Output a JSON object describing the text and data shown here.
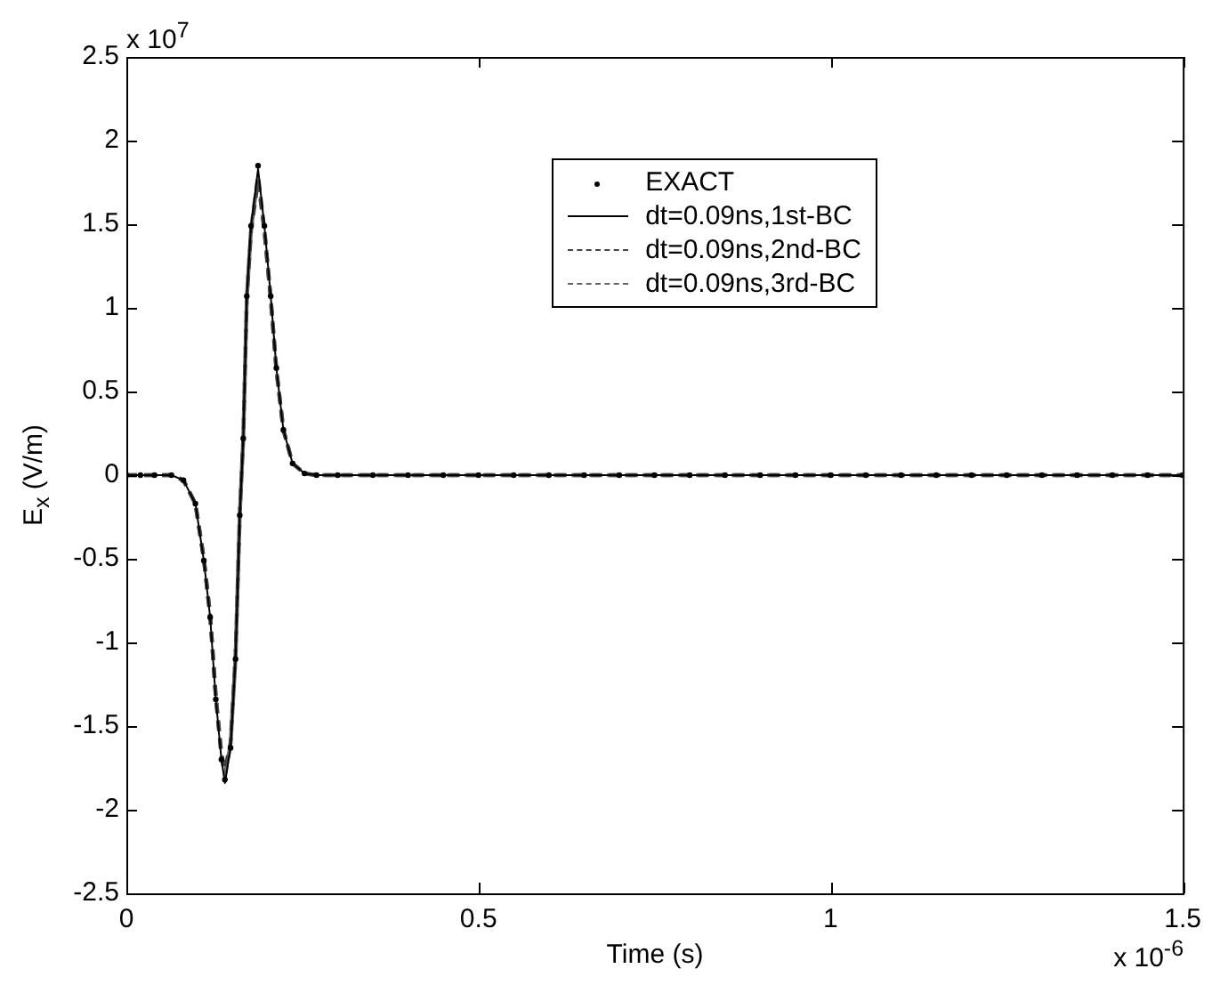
{
  "chart_data": {
    "type": "line",
    "xlabel": "Time (s)",
    "ylabel": "E$_{x}$ (V/m)",
    "annotations": [
      "x 10$^{7}$",
      "x 10$^{-6}$"
    ],
    "xlim": [
      0,
      1.5
    ],
    "xticks": [
      0,
      0.5,
      1,
      1.5
    ],
    "ylim": [
      -2.5,
      2.5
    ],
    "yticks": [
      -2.5,
      -2,
      -1.5,
      -1,
      -0.5,
      0,
      0.5,
      1,
      1.5,
      2,
      2.5
    ],
    "grid": false,
    "legend": "top",
    "marker": "none",
    "series": [
      {
        "name": "EXACT",
        "type": "scatter",
        "marker": "circle",
        "color": "#000000",
        "x": [
          0,
          0.02,
          0.04,
          0.064,
          0.081,
          0.098,
          0.11,
          0.119,
          0.127,
          0.135,
          0.14,
          0.148,
          0.155,
          0.161,
          0.166,
          0.171,
          0.177,
          0.187,
          0.196,
          0.205,
          0.213,
          0.223,
          0.236,
          0.253,
          0.27,
          0.3,
          0.35,
          0.4,
          0.45,
          0.5,
          0.55,
          0.6,
          0.65,
          0.7,
          0.75,
          0.8,
          0.85,
          0.9,
          0.95,
          1,
          1.05,
          1.1,
          1.15,
          1.2,
          1.25,
          1.3,
          1.35,
          1.4,
          1.45,
          1.5
        ],
        "values": [
          0,
          0,
          0,
          0,
          -0.03,
          -0.17,
          -0.51,
          -0.85,
          -1.34,
          -1.7,
          -1.82,
          -1.63,
          -1.1,
          -0.24,
          0.22,
          1.07,
          1.49,
          1.85,
          1.49,
          1.07,
          0.64,
          0.27,
          0.07,
          0.01,
          0,
          0,
          0,
          0,
          0,
          0,
          0,
          0,
          0,
          0,
          0,
          0,
          0,
          0,
          0,
          0,
          0,
          0,
          0,
          0,
          0,
          0,
          0,
          0,
          0,
          0
        ]
      },
      {
        "name": "dt=0.09ns,1st-BC",
        "color": "#000000",
        "line_style": "solid",
        "x": [
          0,
          0.064,
          0.081,
          0.098,
          0.11,
          0.119,
          0.127,
          0.135,
          0.14,
          0.148,
          0.155,
          0.161,
          0.166,
          0.171,
          0.177,
          0.187,
          0.196,
          0.205,
          0.213,
          0.223,
          0.236,
          0.253,
          0.27,
          1.5
        ],
        "values": [
          0,
          0,
          -0.03,
          -0.17,
          -0.51,
          -0.85,
          -1.34,
          -1.7,
          -1.84,
          -1.63,
          -1.1,
          -0.24,
          0.22,
          1.07,
          1.49,
          1.83,
          1.49,
          1.07,
          0.64,
          0.27,
          0.07,
          0.01,
          0,
          0
        ]
      },
      {
        "name": "dt=0.09ns,2nd-BC",
        "color": "#444444",
        "line_style": "dashed",
        "x": [
          0,
          0.064,
          0.081,
          0.098,
          0.11,
          0.119,
          0.127,
          0.135,
          0.14,
          0.148,
          0.155,
          0.161,
          0.166,
          0.171,
          0.177,
          0.187,
          0.196,
          0.205,
          0.213,
          0.223,
          0.236,
          0.253,
          0.27,
          1.5
        ],
        "values": [
          0,
          0,
          -0.03,
          -0.17,
          -0.5,
          -0.84,
          -1.32,
          -1.67,
          -1.76,
          -1.6,
          -1.08,
          -0.24,
          0.22,
          1.05,
          1.46,
          1.76,
          1.46,
          1.05,
          0.63,
          0.27,
          0.07,
          0.01,
          0,
          0
        ]
      },
      {
        "name": "dt=0.09ns,3rd-BC",
        "color": "#666666",
        "line_style": "dashed",
        "x": [
          0,
          0.064,
          0.081,
          0.098,
          0.11,
          0.119,
          0.127,
          0.135,
          0.14,
          0.148,
          0.155,
          0.161,
          0.166,
          0.171,
          0.177,
          0.187,
          0.196,
          0.205,
          0.213,
          0.223,
          0.236,
          0.253,
          0.27,
          1.5
        ],
        "values": [
          0,
          0,
          -0.03,
          -0.17,
          -0.5,
          -0.84,
          -1.33,
          -1.68,
          -1.79,
          -1.61,
          -1.09,
          -0.24,
          0.22,
          1.06,
          1.47,
          1.79,
          1.47,
          1.06,
          0.63,
          0.27,
          0.07,
          0.01,
          0,
          0
        ]
      }
    ]
  }
}
